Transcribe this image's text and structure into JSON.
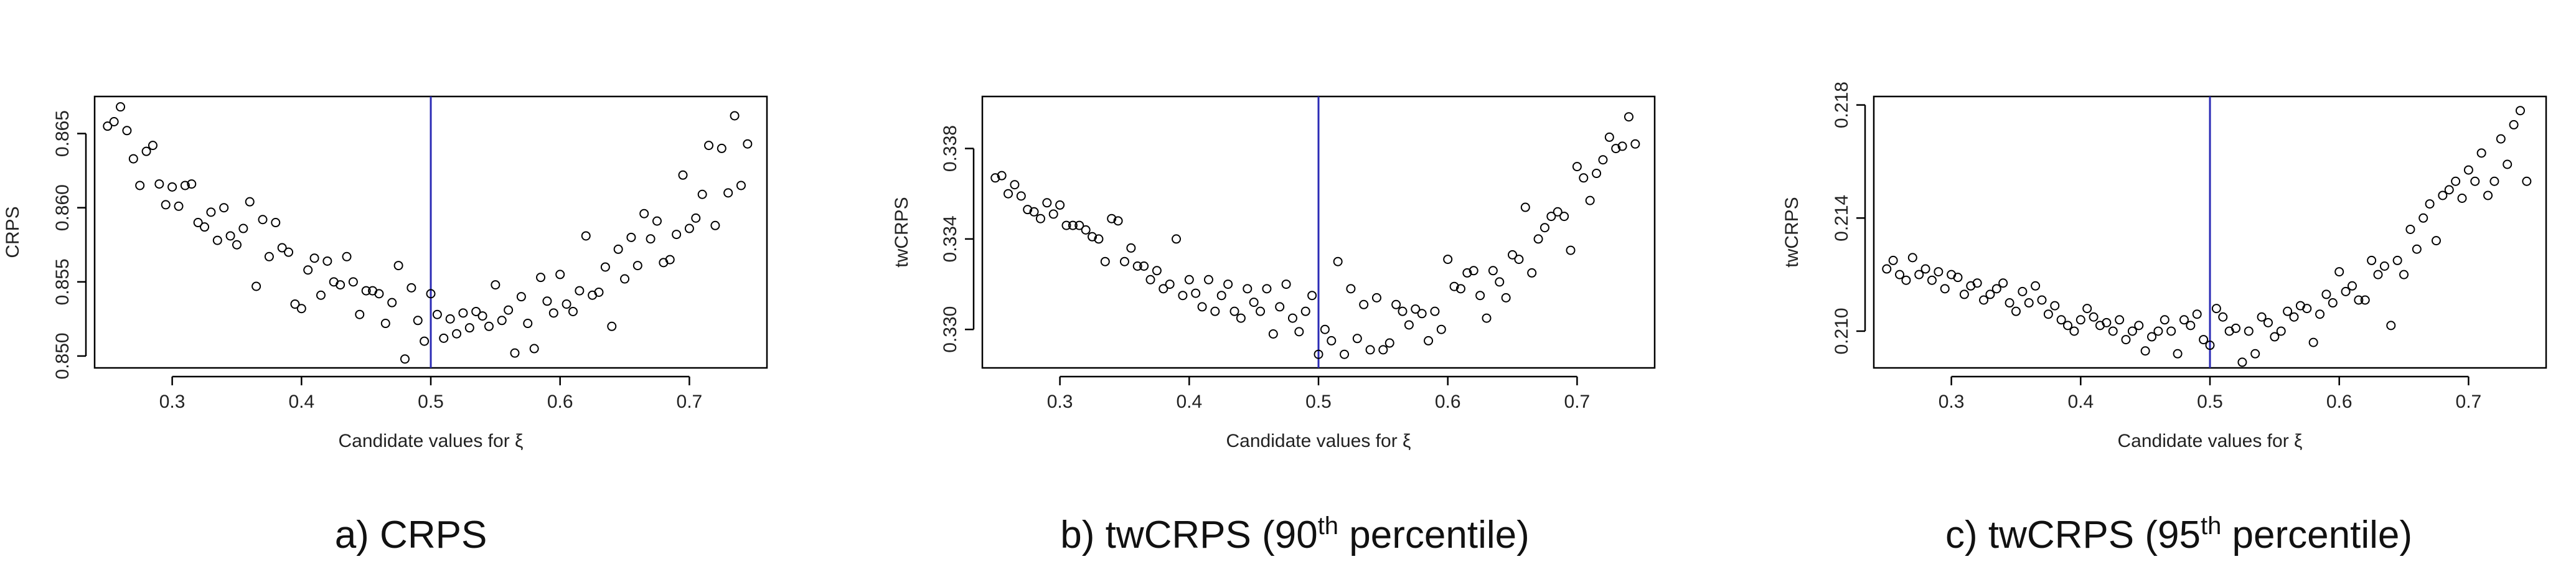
{
  "captions": [
    {
      "pre": "a) CRPS",
      "sup": "",
      "post": ""
    },
    {
      "pre": "b) twCRPS (90",
      "sup": "th",
      "post": " percentile)"
    },
    {
      "pre": "c) twCRPS (95",
      "sup": "th",
      "post": " percentile)"
    }
  ],
  "colors": {
    "points": "#000000",
    "vline": "#2b2bb5",
    "frame": "#000000"
  },
  "chart_data": [
    {
      "type": "scatter",
      "title": "",
      "xlabel": "Candidate values for ξ",
      "ylabel": "CRPS",
      "xlim": [
        0.24,
        0.76
      ],
      "ylim": [
        0.8492,
        0.8675
      ],
      "xticks": [
        0.3,
        0.4,
        0.5,
        0.6,
        0.7
      ],
      "xtick_labels": [
        "0.3",
        "0.4",
        "0.5",
        "0.6",
        "0.7"
      ],
      "yticks": [
        0.85,
        0.855,
        0.86,
        0.865
      ],
      "ytick_labels": [
        "0.850",
        "0.855",
        "0.860",
        "0.865"
      ],
      "vline": 0.5,
      "grid": false,
      "x": [
        0.25,
        0.255,
        0.26,
        0.265,
        0.27,
        0.275,
        0.28,
        0.285,
        0.29,
        0.295,
        0.3,
        0.305,
        0.31,
        0.315,
        0.32,
        0.325,
        0.33,
        0.335,
        0.34,
        0.345,
        0.35,
        0.355,
        0.36,
        0.365,
        0.37,
        0.375,
        0.38,
        0.385,
        0.39,
        0.395,
        0.4,
        0.405,
        0.41,
        0.415,
        0.42,
        0.425,
        0.43,
        0.435,
        0.44,
        0.445,
        0.45,
        0.455,
        0.46,
        0.465,
        0.47,
        0.475,
        0.48,
        0.485,
        0.49,
        0.495,
        0.5,
        0.505,
        0.51,
        0.515,
        0.52,
        0.525,
        0.53,
        0.535,
        0.54,
        0.545,
        0.55,
        0.555,
        0.56,
        0.565,
        0.57,
        0.575,
        0.58,
        0.585,
        0.59,
        0.595,
        0.6,
        0.605,
        0.61,
        0.615,
        0.62,
        0.625,
        0.63,
        0.635,
        0.64,
        0.645,
        0.65,
        0.655,
        0.66,
        0.665,
        0.67,
        0.675,
        0.68,
        0.685,
        0.69,
        0.695,
        0.7,
        0.705,
        0.71,
        0.715,
        0.72,
        0.725,
        0.73,
        0.735,
        0.74,
        0.745
      ],
      "y": [
        0.8655,
        0.8658,
        0.8668,
        0.8652,
        0.8633,
        0.8615,
        0.8638,
        0.8642,
        0.8616,
        0.8602,
        0.8614,
        0.8601,
        0.8615,
        0.8616,
        0.859,
        0.8587,
        0.8597,
        0.8578,
        0.86,
        0.8581,
        0.8575,
        0.8586,
        0.8604,
        0.8547,
        0.8592,
        0.8567,
        0.859,
        0.8573,
        0.857,
        0.8535,
        0.8532,
        0.8558,
        0.8566,
        0.8541,
        0.8564,
        0.855,
        0.8548,
        0.8567,
        0.855,
        0.8528,
        0.8544,
        0.8544,
        0.8542,
        0.8522,
        0.8536,
        0.8561,
        0.8498,
        0.8546,
        0.8524,
        0.851,
        0.8542,
        0.8528,
        0.8512,
        0.8525,
        0.8515,
        0.8529,
        0.8519,
        0.853,
        0.8527,
        0.852,
        0.8548,
        0.8524,
        0.8531,
        0.8502,
        0.854,
        0.8522,
        0.8505,
        0.8553,
        0.8537,
        0.8529,
        0.8555,
        0.8535,
        0.853,
        0.8544,
        0.8581,
        0.8541,
        0.8543,
        0.856,
        0.852,
        0.8572,
        0.8552,
        0.858,
        0.8561,
        0.8596,
        0.8579,
        0.8591,
        0.8563,
        0.8565,
        0.8582,
        0.8622,
        0.8586,
        0.8593,
        0.8609,
        0.8642,
        0.8588,
        0.864,
        0.861,
        0.8662,
        0.8615,
        0.8643
      ]
    },
    {
      "type": "scatter",
      "title": "",
      "xlabel": "Candidate values for ξ",
      "ylabel": "twCRPS",
      "xlim": [
        0.24,
        0.76
      ],
      "ylim": [
        0.3283,
        0.3403
      ],
      "xticks": [
        0.3,
        0.4,
        0.5,
        0.6,
        0.7
      ],
      "xtick_labels": [
        "0.3",
        "0.4",
        "0.5",
        "0.6",
        "0.7"
      ],
      "yticks": [
        0.33,
        0.334,
        0.338
      ],
      "ytick_labels": [
        "0.330",
        "0.334",
        "0.338"
      ],
      "vline": 0.5,
      "grid": false,
      "x": [
        0.25,
        0.255,
        0.26,
        0.265,
        0.27,
        0.275,
        0.28,
        0.285,
        0.29,
        0.295,
        0.3,
        0.305,
        0.31,
        0.315,
        0.32,
        0.325,
        0.33,
        0.335,
        0.34,
        0.345,
        0.35,
        0.355,
        0.36,
        0.365,
        0.37,
        0.375,
        0.38,
        0.385,
        0.39,
        0.395,
        0.4,
        0.405,
        0.41,
        0.415,
        0.42,
        0.425,
        0.43,
        0.435,
        0.44,
        0.445,
        0.45,
        0.455,
        0.46,
        0.465,
        0.47,
        0.475,
        0.48,
        0.485,
        0.49,
        0.495,
        0.5,
        0.505,
        0.51,
        0.515,
        0.52,
        0.525,
        0.53,
        0.535,
        0.54,
        0.545,
        0.55,
        0.555,
        0.56,
        0.565,
        0.57,
        0.575,
        0.58,
        0.585,
        0.59,
        0.595,
        0.6,
        0.605,
        0.61,
        0.615,
        0.62,
        0.625,
        0.63,
        0.635,
        0.64,
        0.645,
        0.65,
        0.655,
        0.66,
        0.665,
        0.67,
        0.675,
        0.68,
        0.685,
        0.69,
        0.695,
        0.7,
        0.705,
        0.71,
        0.715,
        0.72,
        0.725,
        0.73,
        0.735,
        0.74,
        0.745
      ],
      "y": [
        0.3367,
        0.3368,
        0.336,
        0.3364,
        0.3359,
        0.3353,
        0.3352,
        0.3349,
        0.3356,
        0.3351,
        0.3355,
        0.3346,
        0.3346,
        0.3346,
        0.3344,
        0.3341,
        0.334,
        0.333,
        0.3349,
        0.3348,
        0.333,
        0.3336,
        0.3328,
        0.3328,
        0.3322,
        0.3326,
        0.3318,
        0.332,
        0.334,
        0.3315,
        0.3322,
        0.3316,
        0.331,
        0.3322,
        0.3308,
        0.3315,
        0.332,
        0.3308,
        0.3305,
        0.3318,
        0.3312,
        0.3308,
        0.3318,
        0.3298,
        0.331,
        0.332,
        0.3305,
        0.3299,
        0.3308,
        0.3315,
        0.3289,
        0.33,
        0.3295,
        0.333,
        0.3289,
        0.3318,
        0.3296,
        0.3311,
        0.3291,
        0.3314,
        0.3291,
        0.3294,
        0.3311,
        0.3308,
        0.3302,
        0.3309,
        0.3307,
        0.3295,
        0.3308,
        0.33,
        0.3331,
        0.3319,
        0.3318,
        0.3325,
        0.3326,
        0.3315,
        0.3305,
        0.3326,
        0.3321,
        0.3314,
        0.3333,
        0.3331,
        0.3354,
        0.3325,
        0.334,
        0.3345,
        0.335,
        0.3352,
        0.335,
        0.3335,
        0.3372,
        0.3367,
        0.3357,
        0.3369,
        0.3375,
        0.3385,
        0.338,
        0.3381,
        0.3394,
        0.3382
      ]
    },
    {
      "type": "scatter",
      "title": "",
      "xlabel": "Candidate values for ξ",
      "ylabel": "twCRPS",
      "xlim": [
        0.24,
        0.76
      ],
      "ylim": [
        0.2087,
        0.2183
      ],
      "xticks": [
        0.3,
        0.4,
        0.5,
        0.6,
        0.7
      ],
      "xtick_labels": [
        "0.3",
        "0.4",
        "0.5",
        "0.6",
        "0.7"
      ],
      "yticks": [
        0.21,
        0.214,
        0.218
      ],
      "ytick_labels": [
        "0.210",
        "0.214",
        "0.218"
      ],
      "vline": 0.5,
      "grid": false,
      "x": [
        0.25,
        0.255,
        0.26,
        0.265,
        0.27,
        0.275,
        0.28,
        0.285,
        0.29,
        0.295,
        0.3,
        0.305,
        0.31,
        0.315,
        0.32,
        0.325,
        0.33,
        0.335,
        0.34,
        0.345,
        0.35,
        0.355,
        0.36,
        0.365,
        0.37,
        0.375,
        0.38,
        0.385,
        0.39,
        0.395,
        0.4,
        0.405,
        0.41,
        0.415,
        0.42,
        0.425,
        0.43,
        0.435,
        0.44,
        0.445,
        0.45,
        0.455,
        0.46,
        0.465,
        0.47,
        0.475,
        0.48,
        0.485,
        0.49,
        0.495,
        0.5,
        0.505,
        0.51,
        0.515,
        0.52,
        0.525,
        0.53,
        0.535,
        0.54,
        0.545,
        0.55,
        0.555,
        0.56,
        0.565,
        0.57,
        0.575,
        0.58,
        0.585,
        0.59,
        0.595,
        0.6,
        0.605,
        0.61,
        0.615,
        0.62,
        0.625,
        0.63,
        0.635,
        0.64,
        0.645,
        0.65,
        0.655,
        0.66,
        0.665,
        0.67,
        0.675,
        0.68,
        0.685,
        0.69,
        0.695,
        0.7,
        0.705,
        0.71,
        0.715,
        0.72,
        0.725,
        0.73,
        0.735,
        0.74,
        0.745
      ],
      "y": [
        0.2122,
        0.2125,
        0.212,
        0.2118,
        0.2126,
        0.212,
        0.2122,
        0.2118,
        0.2121,
        0.2115,
        0.212,
        0.2119,
        0.2113,
        0.2116,
        0.2117,
        0.2111,
        0.2113,
        0.2115,
        0.2117,
        0.211,
        0.2107,
        0.2114,
        0.211,
        0.2116,
        0.2111,
        0.2106,
        0.2109,
        0.2104,
        0.2102,
        0.21,
        0.2104,
        0.2108,
        0.2105,
        0.2102,
        0.2103,
        0.21,
        0.2104,
        0.2097,
        0.21,
        0.2102,
        0.2093,
        0.2098,
        0.21,
        0.2104,
        0.21,
        0.2092,
        0.2104,
        0.2102,
        0.2106,
        0.2097,
        0.2095,
        0.2108,
        0.2105,
        0.21,
        0.2101,
        0.2089,
        0.21,
        0.2092,
        0.2105,
        0.2103,
        0.2098,
        0.21,
        0.2107,
        0.2105,
        0.2109,
        0.2108,
        0.2096,
        0.2106,
        0.2113,
        0.211,
        0.2121,
        0.2114,
        0.2116,
        0.2111,
        0.2111,
        0.2125,
        0.212,
        0.2123,
        0.2102,
        0.2125,
        0.212,
        0.2136,
        0.2129,
        0.214,
        0.2145,
        0.2132,
        0.2148,
        0.215,
        0.2153,
        0.2147,
        0.2157,
        0.2153,
        0.2163,
        0.2148,
        0.2153,
        0.2168,
        0.2159,
        0.2173,
        0.2178,
        0.2153
      ]
    }
  ]
}
